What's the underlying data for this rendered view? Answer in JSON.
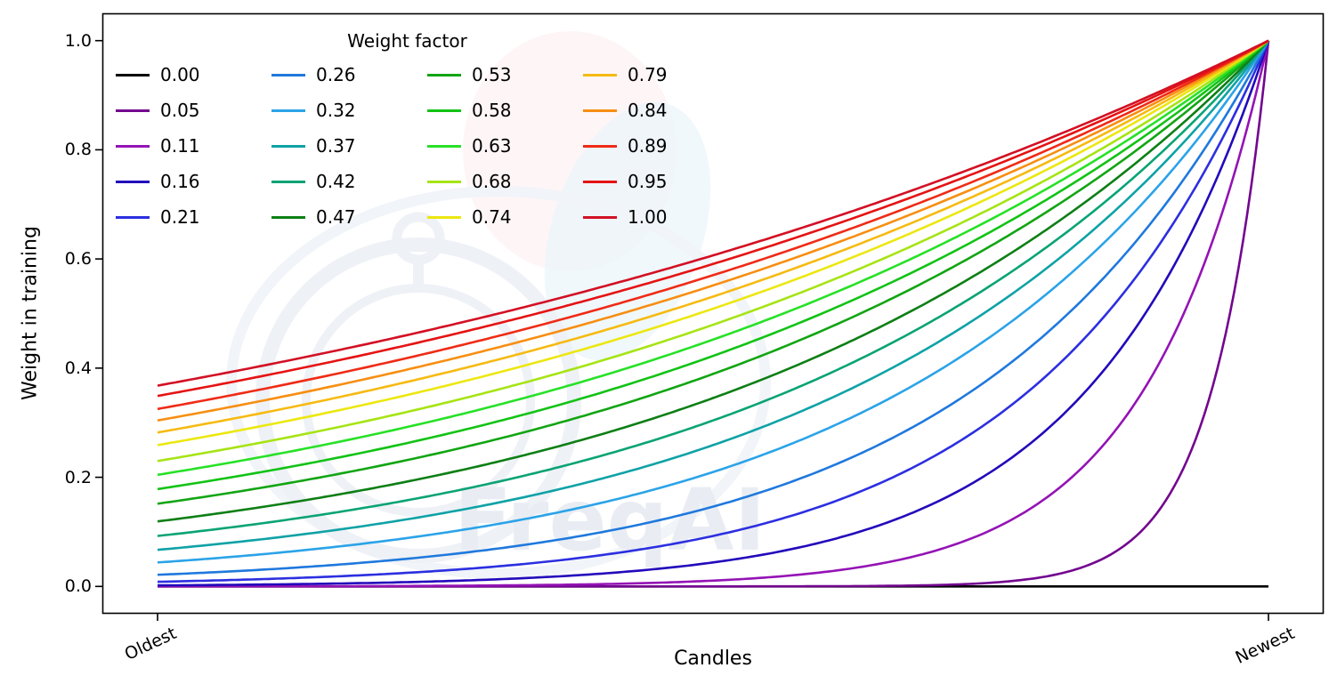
{
  "figure": {
    "xlabel": "Candles",
    "ylabel": "Weight in training"
  },
  "legend": {
    "title": "Weight factor",
    "columns": 4,
    "rows": 5
  },
  "watermark": {
    "text": "FreqAI"
  },
  "chart_data": {
    "type": "line",
    "title": "",
    "xlabel": "Candles",
    "ylabel": "Weight in training",
    "xtick_labels": [
      "Oldest",
      "Newest"
    ],
    "ytick_labels": [
      "0.0",
      "0.2",
      "0.4",
      "0.6",
      "0.8",
      "1.0"
    ],
    "ylim": [
      0.0,
      1.0
    ],
    "grid": false,
    "legend_title": "Weight factor",
    "legend_position": "upper-left",
    "x_axis": "normalized candle age, 0 = Oldest to 1 = Newest",
    "formula": "weight(x) = exp(-(1 - x) / weight_factor); weight_factor = 0 gives a flat weight of 0",
    "series": [
      {
        "name": "0.00",
        "weight_factor": 0.0,
        "color": "#000000",
        "value_at_oldest": 0.0,
        "value_at_newest": 0.0
      },
      {
        "name": "0.05",
        "weight_factor": 0.05,
        "color": "#73068f",
        "value_at_oldest": 0.0,
        "value_at_newest": 1.0
      },
      {
        "name": "0.11",
        "weight_factor": 0.11,
        "color": "#9413b5",
        "value_at_oldest": 0.0001,
        "value_at_newest": 1.0
      },
      {
        "name": "0.16",
        "weight_factor": 0.16,
        "color": "#2209bb",
        "value_at_oldest": 0.0019,
        "value_at_newest": 1.0
      },
      {
        "name": "0.21",
        "weight_factor": 0.21,
        "color": "#2c2fe0",
        "value_at_oldest": 0.0086,
        "value_at_newest": 1.0
      },
      {
        "name": "0.26",
        "weight_factor": 0.26,
        "color": "#1f79dd",
        "value_at_oldest": 0.0214,
        "value_at_newest": 1.0
      },
      {
        "name": "0.32",
        "weight_factor": 0.32,
        "color": "#2ba3e8",
        "value_at_oldest": 0.0439,
        "value_at_newest": 1.0
      },
      {
        "name": "0.37",
        "weight_factor": 0.37,
        "color": "#0fa2a6",
        "value_at_oldest": 0.0669,
        "value_at_newest": 1.0
      },
      {
        "name": "0.42",
        "weight_factor": 0.42,
        "color": "#0aa374",
        "value_at_oldest": 0.0924,
        "value_at_newest": 1.0
      },
      {
        "name": "0.47",
        "weight_factor": 0.47,
        "color": "#0d7f15",
        "value_at_oldest": 0.1191,
        "value_at_newest": 1.0
      },
      {
        "name": "0.53",
        "weight_factor": 0.53,
        "color": "#12a513",
        "value_at_oldest": 0.1516,
        "value_at_newest": 1.0
      },
      {
        "name": "0.58",
        "weight_factor": 0.58,
        "color": "#12c315",
        "value_at_oldest": 0.1783,
        "value_at_newest": 1.0
      },
      {
        "name": "0.63",
        "weight_factor": 0.63,
        "color": "#27e127",
        "value_at_oldest": 0.2044,
        "value_at_newest": 1.0
      },
      {
        "name": "0.68",
        "weight_factor": 0.68,
        "color": "#a6e414",
        "value_at_oldest": 0.2299,
        "value_at_newest": 1.0
      },
      {
        "name": "0.74",
        "weight_factor": 0.74,
        "color": "#ece711",
        "value_at_oldest": 0.2589,
        "value_at_newest": 1.0
      },
      {
        "name": "0.79",
        "weight_factor": 0.79,
        "color": "#f6ba12",
        "value_at_oldest": 0.282,
        "value_at_newest": 1.0
      },
      {
        "name": "0.84",
        "weight_factor": 0.84,
        "color": "#f78e12",
        "value_at_oldest": 0.304,
        "value_at_newest": 1.0
      },
      {
        "name": "0.89",
        "weight_factor": 0.89,
        "color": "#ef2b16",
        "value_at_oldest": 0.3251,
        "value_at_newest": 1.0
      },
      {
        "name": "0.95",
        "weight_factor": 0.95,
        "color": "#e51313",
        "value_at_oldest": 0.349,
        "value_at_newest": 1.0
      },
      {
        "name": "1.00",
        "weight_factor": 1.0,
        "color": "#d31024",
        "value_at_oldest": 0.3679,
        "value_at_newest": 1.0
      }
    ]
  }
}
